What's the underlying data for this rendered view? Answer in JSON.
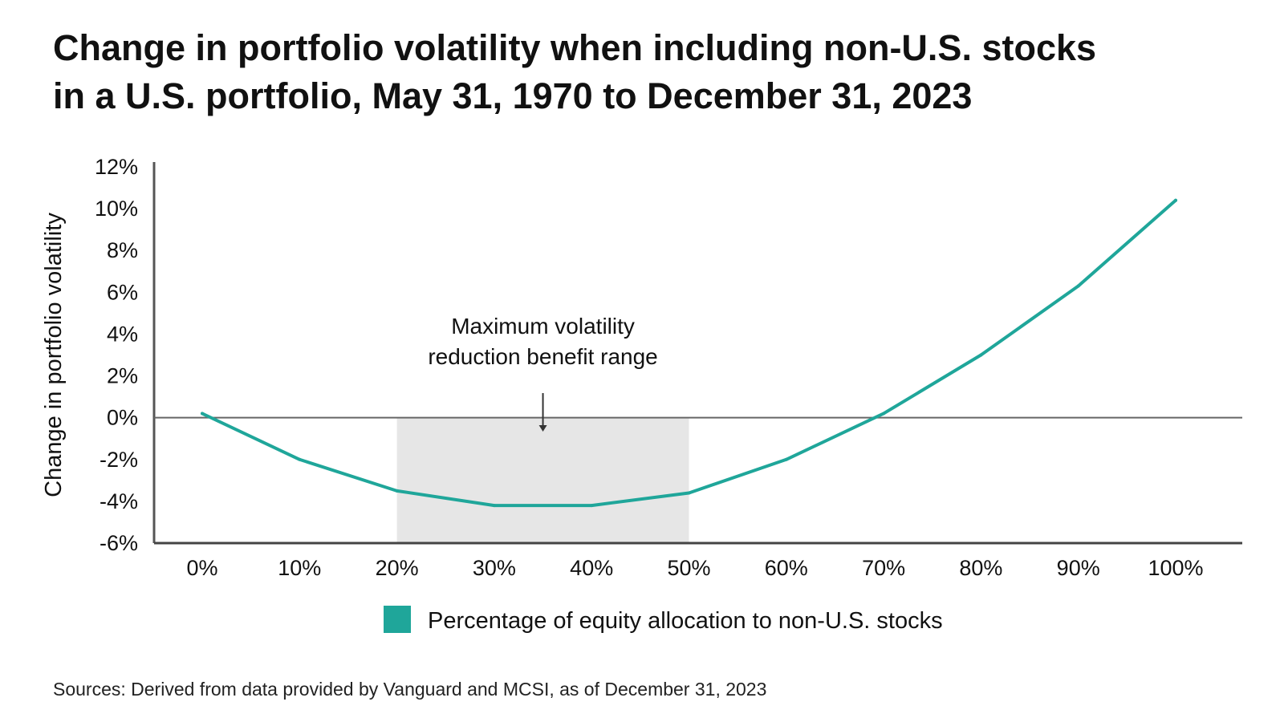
{
  "chart_data": {
    "type": "line",
    "title_line1": "Change in portfolio volatility when including non-U.S. stocks",
    "title_line2": "in a U.S. portfolio, May 31, 1970 to December 31, 2023",
    "ylabel": "Change in portfolio volatility",
    "xlabel": "",
    "x": [
      0,
      10,
      20,
      30,
      40,
      50,
      60,
      70,
      80,
      90,
      100
    ],
    "x_tick_labels": [
      "0%",
      "10%",
      "20%",
      "30%",
      "40%",
      "50%",
      "60%",
      "70%",
      "80%",
      "90%",
      "100%"
    ],
    "y_ticks": [
      12,
      10,
      8,
      6,
      4,
      2,
      0,
      -2,
      -4,
      -6
    ],
    "y_tick_labels": [
      "12%",
      "10%",
      "8%",
      "6%",
      "4%",
      "2%",
      "0%",
      "-2%",
      "-4%",
      "-6%"
    ],
    "ylim": [
      -6,
      12
    ],
    "series": [
      {
        "name": "Percentage of equity allocation to non-U.S. stocks",
        "color": "#1fa69a",
        "values": [
          0.2,
          -2.0,
          -3.5,
          -4.2,
          -4.2,
          -3.6,
          -2.0,
          0.2,
          3.0,
          6.3,
          10.4
        ]
      }
    ],
    "highlight_range": {
      "x_start": 20,
      "x_end": 50,
      "color": "#e6e6e6"
    },
    "annotation": {
      "line1": "Maximum volatility",
      "line2": "reduction benefit range",
      "x_value": 35
    },
    "legend_label": "Percentage of equity allocation to non-U.S. stocks",
    "legend_color": "#1fa69a",
    "source": "Sources: Derived from data provided by Vanguard and MCSI, as of December 31, 2023"
  }
}
